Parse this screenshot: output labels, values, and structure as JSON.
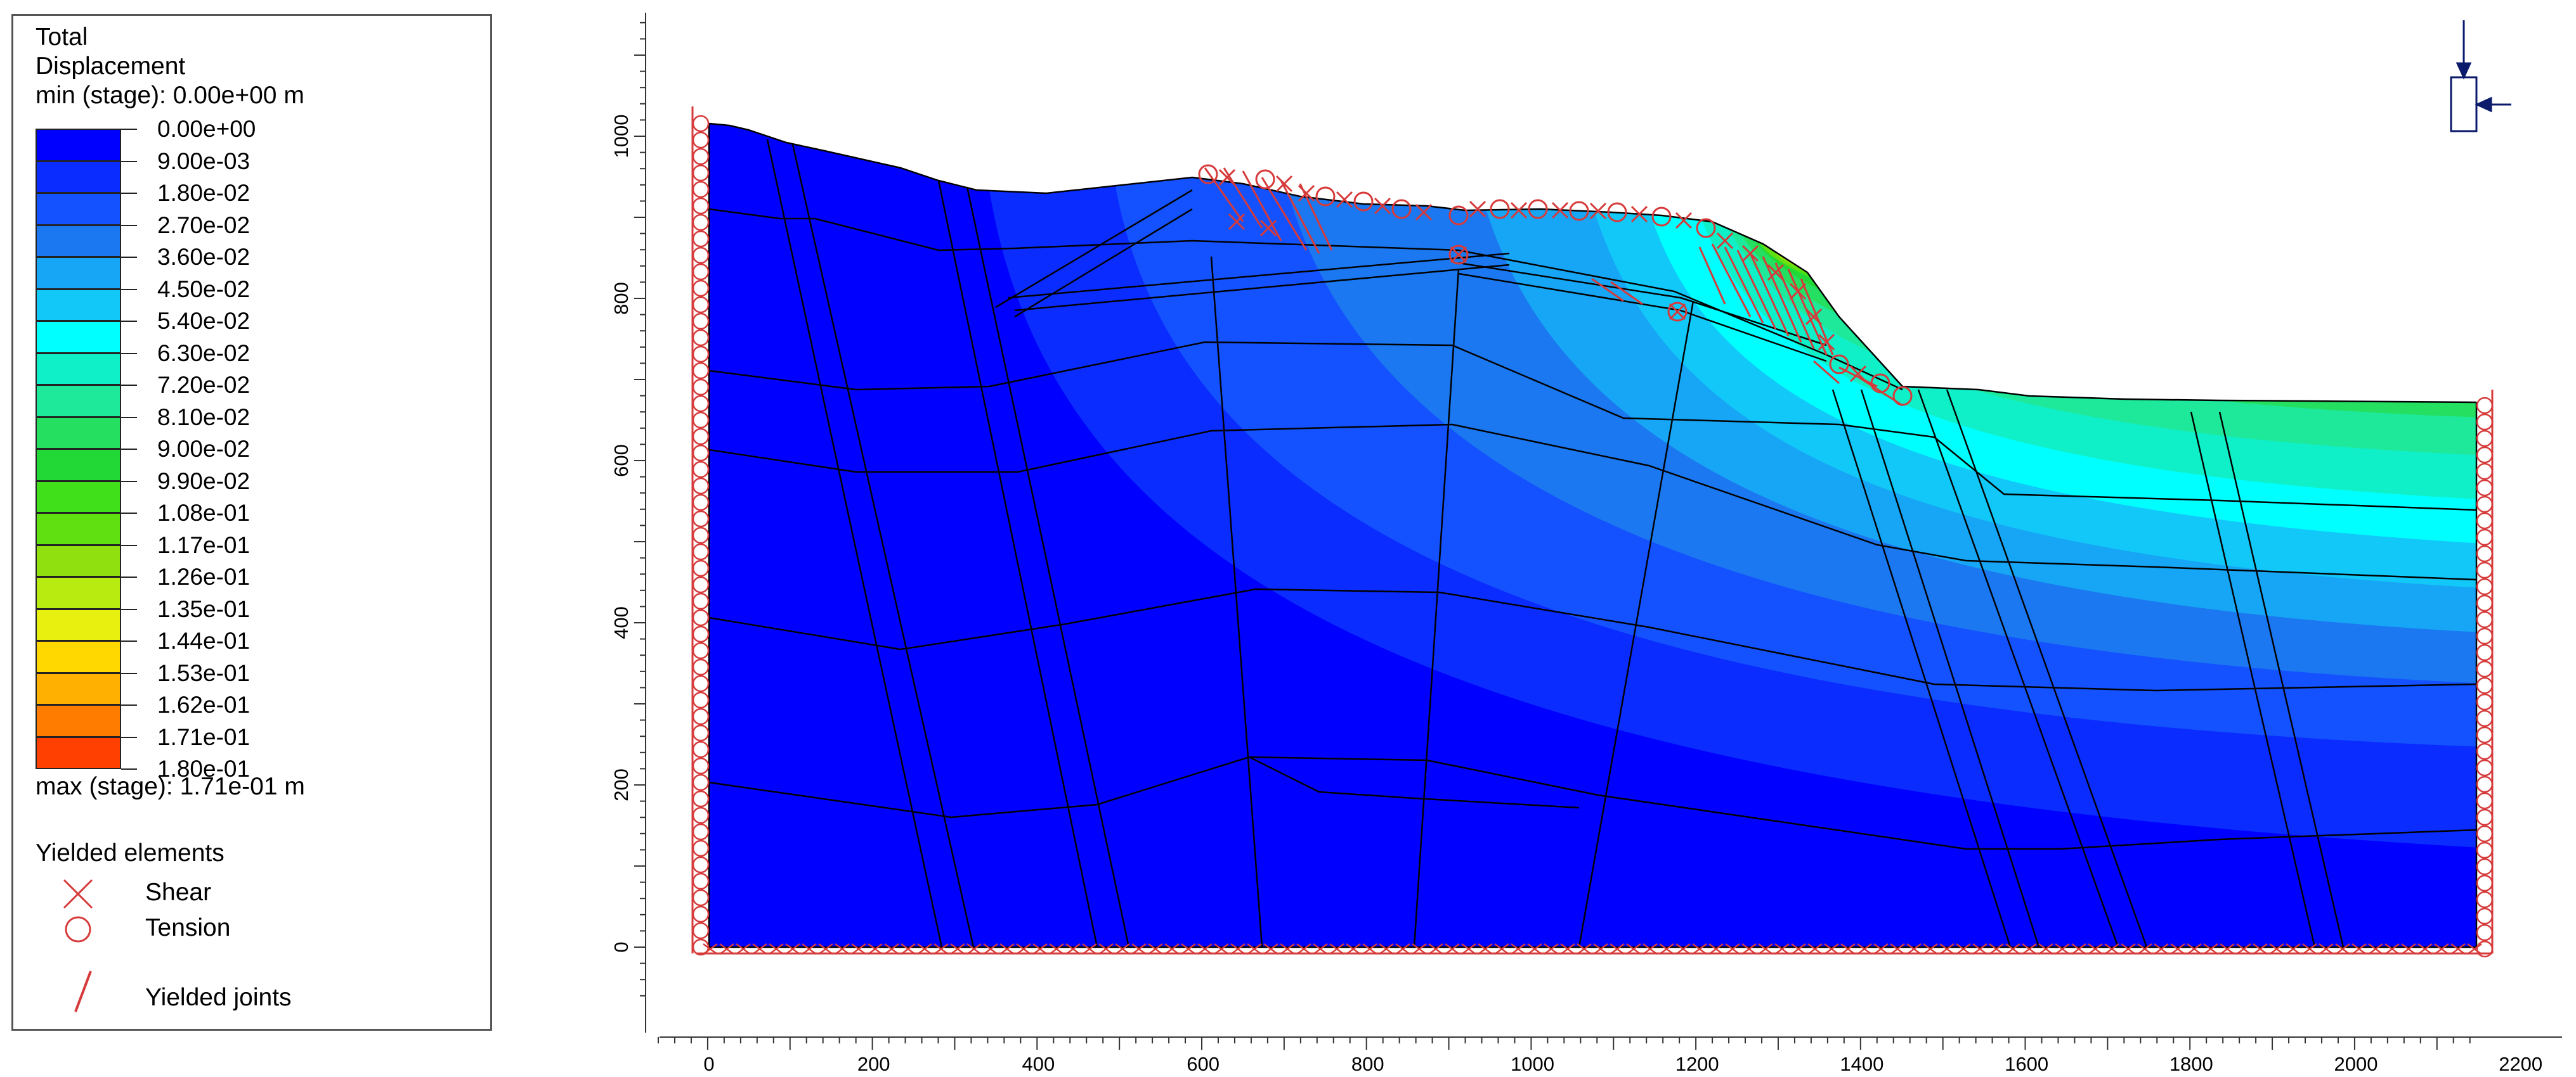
{
  "legend": {
    "title_line1": "Total",
    "title_line2": "Displacement",
    "min_label": "min (stage): 0.00e+00 m",
    "max_label": "max (stage): 1.71e-01 m",
    "colorbar": [
      {
        "value": "0.00e+00",
        "color": "#0000ff"
      },
      {
        "value": "9.00e-03",
        "color": "#0a2cff"
      },
      {
        "value": "1.80e-02",
        "color": "#1452ff"
      },
      {
        "value": "2.70e-02",
        "color": "#1b78f0"
      },
      {
        "value": "3.60e-02",
        "color": "#16a6f5"
      },
      {
        "value": "4.50e-02",
        "color": "#12c8f8"
      },
      {
        "value": "5.40e-02",
        "color": "#00ffff"
      },
      {
        "value": "6.30e-02",
        "color": "#10f0c8"
      },
      {
        "value": "7.20e-02",
        "color": "#1ee89a"
      },
      {
        "value": "8.10e-02",
        "color": "#25e060"
      },
      {
        "value": "9.00e-02",
        "color": "#22d836"
      },
      {
        "value": "9.90e-02",
        "color": "#40e01a"
      },
      {
        "value": "1.08e-01",
        "color": "#60e010"
      },
      {
        "value": "1.17e-01",
        "color": "#90e010"
      },
      {
        "value": "1.26e-01",
        "color": "#b8ec10"
      },
      {
        "value": "1.35e-01",
        "color": "#e8f010"
      },
      {
        "value": "1.44e-01",
        "color": "#ffd800"
      },
      {
        "value": "1.53e-01",
        "color": "#ffb000"
      },
      {
        "value": "1.62e-01",
        "color": "#ff7c00"
      },
      {
        "value": "1.71e-01",
        "color": "#ff4000"
      },
      {
        "value": "1.80e-01",
        "color": "#ff0000"
      }
    ],
    "yielded_elements_heading": "Yielded elements",
    "shear_label": "Shear",
    "tension_label": "Tension",
    "yielded_joints_label": "Yielded joints",
    "marker_color": "#d63a3a"
  },
  "axes": {
    "x_ticks": [
      "0",
      "200",
      "400",
      "600",
      "800",
      "1000",
      "1200",
      "1400",
      "1600",
      "1800",
      "2000",
      "2200"
    ],
    "y_ticks": [
      "0",
      "200",
      "400",
      "600",
      "800",
      "1000"
    ]
  }
}
